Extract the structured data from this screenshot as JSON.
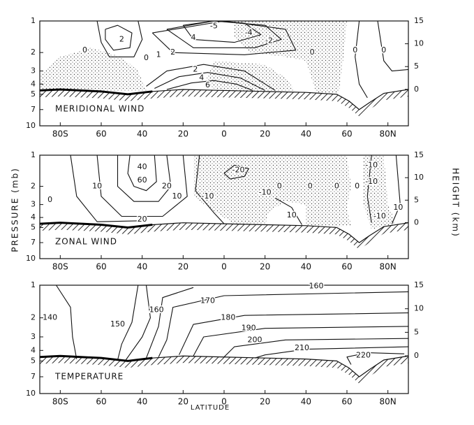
{
  "y_label": "PRESSURE (mb)",
  "y2_label": "HEIGHT (km)",
  "chart_data": [
    {
      "type": "contour",
      "title": "MERIDIONAL WIND",
      "xlim": [
        -90,
        90
      ],
      "xticks": [
        {
          "value": -80,
          "label": "80S"
        },
        {
          "value": -60,
          "label": "60"
        },
        {
          "value": -40,
          "label": "40"
        },
        {
          "value": -20,
          "label": "20"
        },
        0,
        {
          "value": 20,
          "label": "20"
        },
        {
          "value": 40,
          "label": "40"
        },
        {
          "value": 60,
          "label": "60"
        },
        {
          "value": 80,
          "label": "80N"
        }
      ],
      "ylim": [
        1,
        10
      ],
      "log_y": true,
      "yticks": [
        1,
        2,
        3,
        4,
        5,
        7,
        10
      ],
      "y2lim": [
        -8,
        15
      ],
      "y2ticks": [
        15,
        10,
        5,
        0
      ],
      "contour_labels": [
        {
          "lat": -50,
          "p": 1.5,
          "value": 2
        },
        {
          "lat": -68,
          "p": 1.9,
          "value": 0
        },
        {
          "lat": -38,
          "p": 2.25,
          "value": 0
        },
        {
          "lat": -32,
          "p": 2.1,
          "value": 1
        },
        {
          "lat": -25,
          "p": 2.0,
          "value": 2
        },
        {
          "lat": -15,
          "p": 1.45,
          "value": 4
        },
        {
          "lat": -5,
          "p": 1.12,
          "value": -5
        },
        {
          "lat": 12,
          "p": 1.3,
          "value": -4
        },
        {
          "lat": 22,
          "p": 1.55,
          "value": -2
        },
        {
          "lat": -14,
          "p": 2.9,
          "value": 2
        },
        {
          "lat": -11,
          "p": 3.5,
          "value": 4
        },
        {
          "lat": -8,
          "p": 4.1,
          "value": 6
        },
        {
          "lat": 43,
          "p": 2.0,
          "value": 0
        },
        {
          "lat": 64,
          "p": 1.9,
          "value": 0
        },
        {
          "lat": 78,
          "p": 1.9,
          "value": 0
        }
      ]
    },
    {
      "type": "contour",
      "title": "ZONAL WIND",
      "xlim": [
        -90,
        90
      ],
      "xticks": [
        {
          "value": -80,
          "label": "80S"
        },
        {
          "value": -60,
          "label": "60"
        },
        {
          "value": -40,
          "label": "40"
        },
        {
          "value": -20,
          "label": "20"
        },
        0,
        {
          "value": 20,
          "label": "20"
        },
        {
          "value": 40,
          "label": "40"
        },
        {
          "value": 60,
          "label": "60"
        },
        {
          "value": 80,
          "label": "80N"
        }
      ],
      "ylim": [
        1,
        10
      ],
      "log_y": true,
      "yticks": [
        1,
        2,
        3,
        4,
        5,
        7,
        10
      ],
      "y2lim": [
        -8,
        15
      ],
      "y2ticks": [
        15,
        10,
        5,
        0
      ],
      "contour_labels": [
        {
          "lat": -40,
          "p": 1.3,
          "value": 40
        },
        {
          "lat": -40,
          "p": 1.75,
          "value": 60
        },
        {
          "lat": -40,
          "p": 4.2,
          "value": 20
        },
        {
          "lat": -62,
          "p": 2.0,
          "value": 10
        },
        {
          "lat": -85,
          "p": 2.7,
          "value": 0
        },
        {
          "lat": -28,
          "p": 2.0,
          "value": 20
        },
        {
          "lat": -23,
          "p": 2.5,
          "value": 10
        },
        {
          "lat": -8,
          "p": 2.5,
          "value": -10
        },
        {
          "lat": 7,
          "p": 1.4,
          "value": -20
        },
        {
          "lat": 20,
          "p": 2.3,
          "value": -10
        },
        {
          "lat": 27,
          "p": 2.0,
          "value": 0
        },
        {
          "lat": 42,
          "p": 2.0,
          "value": 0
        },
        {
          "lat": 55,
          "p": 2.0,
          "value": 0
        },
        {
          "lat": 33,
          "p": 3.8,
          "value": 10
        },
        {
          "lat": 72,
          "p": 1.25,
          "value": -10
        },
        {
          "lat": 72,
          "p": 1.8,
          "value": -10
        },
        {
          "lat": 65,
          "p": 2.0,
          "value": 0
        },
        {
          "lat": 76,
          "p": 3.9,
          "value": -10
        },
        {
          "lat": 85,
          "p": 3.2,
          "value": 10
        }
      ]
    },
    {
      "type": "contour",
      "title": "TEMPERATURE",
      "xlabel": "LATITUDE",
      "xlim": [
        -90,
        90
      ],
      "xticks": [
        {
          "value": -80,
          "label": "80S"
        },
        {
          "value": -60,
          "label": "60"
        },
        {
          "value": -40,
          "label": "40"
        },
        {
          "value": -20,
          "label": "20"
        },
        0,
        {
          "value": 20,
          "label": "20"
        },
        {
          "value": 40,
          "label": "40"
        },
        {
          "value": 60,
          "label": "60"
        },
        {
          "value": 80,
          "label": "80N"
        }
      ],
      "ylim": [
        1,
        10
      ],
      "log_y": true,
      "yticks": [
        1,
        2,
        3,
        4,
        5,
        7,
        10
      ],
      "y2lim": [
        -8,
        15
      ],
      "y2ticks": [
        15,
        10,
        5,
        0
      ],
      "contour_labels": [
        {
          "lat": -85,
          "p": 2.0,
          "value": 140
        },
        {
          "lat": -52,
          "p": 2.3,
          "value": 150
        },
        {
          "lat": -33,
          "p": 1.7,
          "value": 160
        },
        {
          "lat": 45,
          "p": 1.02,
          "value": 160
        },
        {
          "lat": -8,
          "p": 1.4,
          "value": 170
        },
        {
          "lat": 2,
          "p": 2.0,
          "value": 180
        },
        {
          "lat": 12,
          "p": 2.5,
          "value": 190
        },
        {
          "lat": 15,
          "p": 3.2,
          "value": 200
        },
        {
          "lat": 38,
          "p": 3.8,
          "value": 210
        },
        {
          "lat": 68,
          "p": 4.45,
          "value": 220
        }
      ]
    }
  ]
}
